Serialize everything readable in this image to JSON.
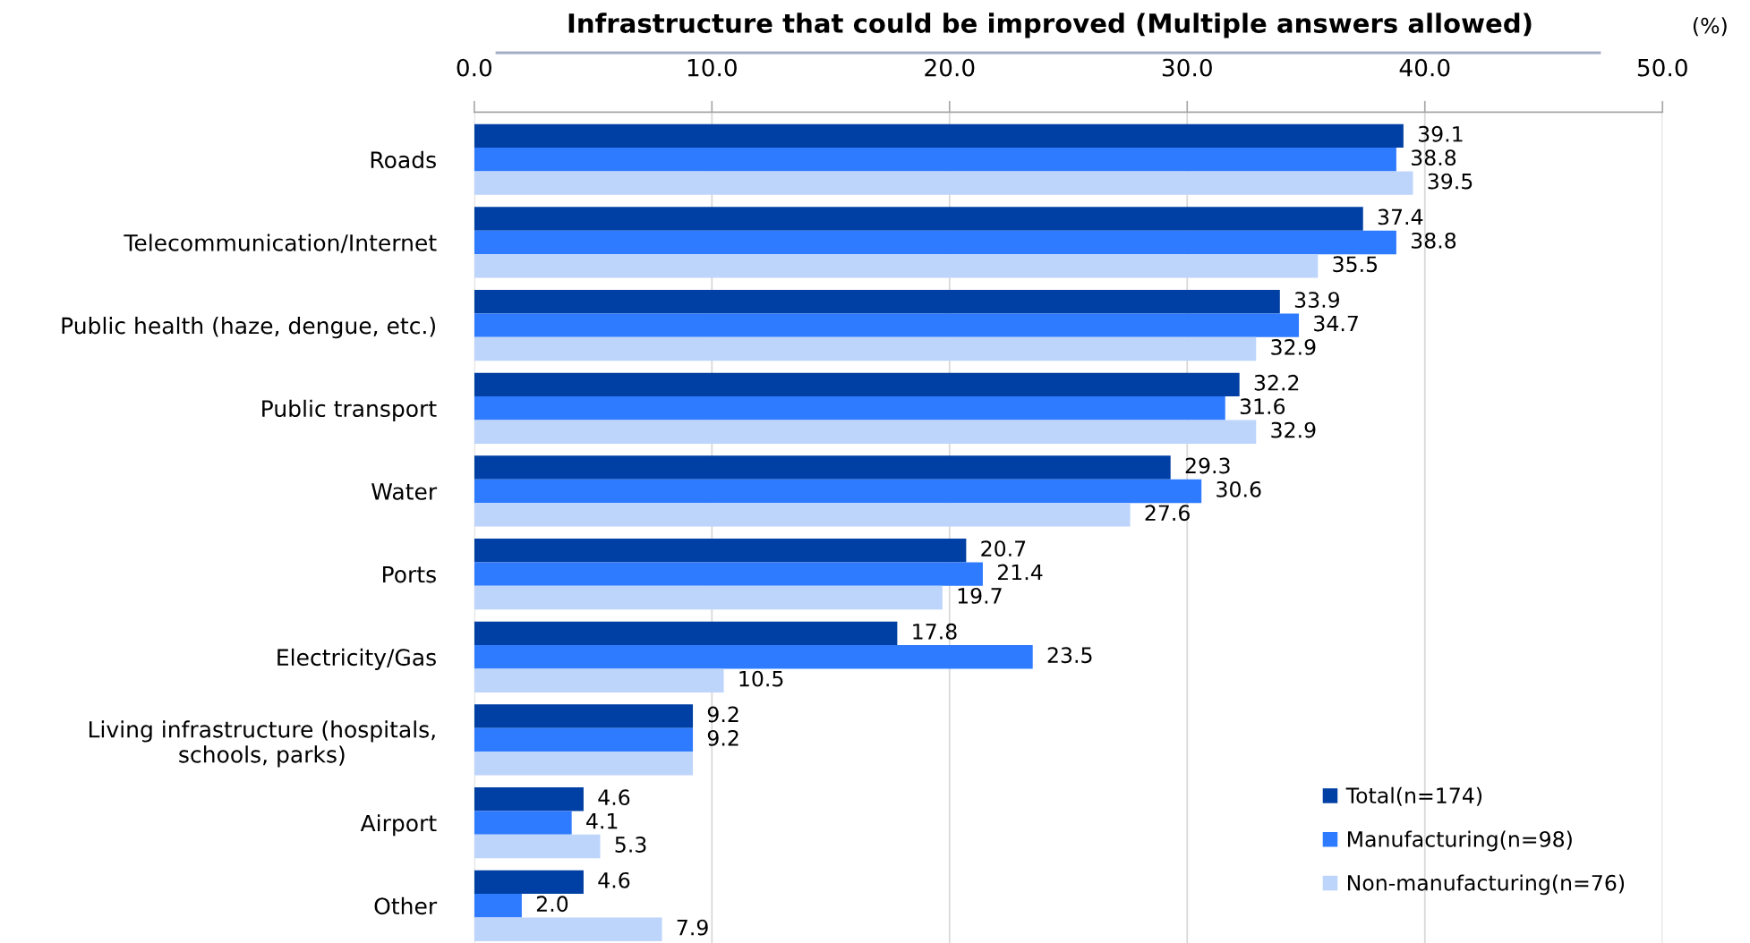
{
  "chart_data": {
    "type": "bar",
    "orientation": "horizontal",
    "title": "Infrastructure that could be improved (Multiple answers allowed)",
    "xlabel": "(%)",
    "categories": [
      "Roads",
      "Telecommunication/Internet",
      "Public health (haze, dengue, etc.)",
      "Public transport",
      "Water",
      "Ports",
      "Electricity/Gas",
      "Living infrastructure (hospitals,\nschools, parks)",
      "Airport",
      "Other"
    ],
    "series": [
      {
        "name": "Total(n=174)",
        "color": "#003fa3",
        "values": [
          39.1,
          37.4,
          33.9,
          32.2,
          29.3,
          20.7,
          17.8,
          9.2,
          4.6,
          4.6
        ],
        "value_labels": [
          "39.1",
          "37.4",
          "33.9",
          "32.2",
          "29.3",
          "20.7",
          "17.8",
          "9.2",
          "4.6",
          "4.6"
        ]
      },
      {
        "name": "Manufacturing(n=98)",
        "color": "#2f7bff",
        "values": [
          38.8,
          38.8,
          34.7,
          31.6,
          30.6,
          21.4,
          23.5,
          9.2,
          4.1,
          2.0
        ],
        "value_labels": [
          "38.8",
          "38.8",
          "34.7",
          "31.6",
          "30.6",
          "21.4",
          "23.5",
          "9.2",
          "4.1",
          "2.0"
        ]
      },
      {
        "name": "Non-manufacturing(n=76)",
        "color": "#bdd4fb",
        "values": [
          39.5,
          35.5,
          32.9,
          32.9,
          27.6,
          19.7,
          10.5,
          9.2,
          5.3,
          7.9
        ],
        "value_labels": [
          "39.5",
          "35.5",
          "32.9",
          "32.9",
          "27.6",
          "19.7",
          "10.5",
          null,
          "5.3",
          "7.9"
        ]
      }
    ],
    "xlim": [
      0,
      50
    ],
    "xticks": [
      {
        "value": 0,
        "label": "0.0"
      },
      {
        "value": 10,
        "label": "10.0"
      },
      {
        "value": 20,
        "label": "20.0"
      },
      {
        "value": 30,
        "label": "30.0"
      },
      {
        "value": 40,
        "label": "40.0"
      },
      {
        "value": 50,
        "label": "50.0"
      }
    ],
    "grid": "x",
    "legend": "bottom right"
  }
}
